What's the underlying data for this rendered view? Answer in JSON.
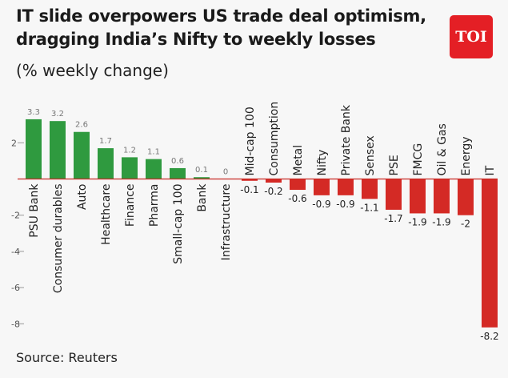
{
  "header": {
    "title": "IT slide overpowers US trade deal optimism, dragging India’s Nifty to weekly losses",
    "subtitle": "(% weekly change)",
    "logo": "TOI"
  },
  "footer": {
    "source": "Source: Reuters"
  },
  "colors": {
    "positive": "#2f9a3f",
    "negative": "#d42a25",
    "zero_line": "#c82a25",
    "brand": "#e41f25"
  },
  "chart_data": {
    "type": "bar",
    "title": "IT slide overpowers US trade deal optimism, dragging India’s Nifty to weekly losses",
    "subtitle": "(% weekly change)",
    "categories": [
      "PSU Bank",
      "Consumer durables",
      "Auto",
      "Healthcare",
      "Finance",
      "Pharma",
      "Small-cap 100",
      "Bank",
      "Infrastructure",
      "Mid-cap 100",
      "Consumption",
      "Metal",
      "Nifty",
      "Private Bank",
      "Sensex",
      "PSE",
      "FMCG",
      "Oil & Gas",
      "Energy",
      "IT"
    ],
    "values": [
      3.3,
      3.2,
      2.6,
      1.7,
      1.2,
      1.1,
      0.6,
      0.1,
      0,
      -0.1,
      -0.2,
      -0.6,
      -0.9,
      -0.9,
      -1.1,
      -1.7,
      -1.9,
      -1.9,
      -2,
      -8.2
    ],
    "value_labels": [
      "3.3",
      "3.2",
      "2.6",
      "1.7",
      "1.2",
      "1.1",
      "0.6",
      "0.1",
      "0",
      "-0.1",
      "-0.2",
      "-0.6",
      "-0.9",
      "-0.9",
      "-1.1",
      "-1.7",
      "-1.9",
      "-1.9",
      "-2",
      "-8.2"
    ],
    "yticks": [
      2,
      -2,
      -4,
      -6,
      -8
    ],
    "ytick_labels": [
      "2",
      "-2",
      "-4",
      "-6",
      "-8"
    ],
    "ylim": [
      -8.2,
      3.3
    ],
    "xlabel": "",
    "ylabel": "",
    "grid": false
  }
}
